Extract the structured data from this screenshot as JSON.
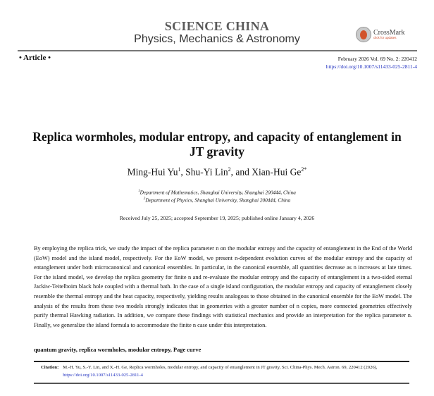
{
  "header": {
    "journal": "SCIENCE CHINA",
    "subjournal": "Physics, Mechanics & Astronomy",
    "crossmark": {
      "label": "CrossMark",
      "sublabel": "click for updates"
    },
    "article_type": "• Article •",
    "issue": "February 2026  Vol. 69  No. 2: 220412",
    "doi": "https://doi.org/10.1007/s11433-025-2811-4"
  },
  "paper": {
    "title": "Replica wormholes, modular entropy, and capacity of entanglement in JT gravity",
    "authors": [
      {
        "name": "Ming-Hui Yu",
        "sup": "1",
        "sep": ", "
      },
      {
        "name": "Shu-Yi Lin",
        "sup": "2",
        "sep": ", and "
      },
      {
        "name": "Xian-Hui Ge",
        "sup": "2*",
        "sep": ""
      }
    ],
    "affiliations": [
      {
        "sup": "1",
        "text": "Department of Mathematics, Shanghai University, Shanghai 200444, China"
      },
      {
        "sup": "2",
        "text": "Department of Physics, Shanghai University, Shanghai 200444, China"
      }
    ],
    "received": "Received July 25, 2025; accepted September 19, 2025; published online January 4, 2026",
    "abstract": "By employing the replica trick, we study the impact of the replica parameter n on the modular entropy and the capacity of entanglement in the End of the World (EoW) model and the island model, respectively. For the EoW model, we present n-dependent evolution curves of the modular entropy and the capacity of entanglement under both microcanonical and canonical ensembles. In particular, in the canonical ensemble, all quantities decrease as n increases at late times. For the island model, we develop the replica geometry for finite n and re-evaluate the modular entropy and the capacity of entanglement in a two-sided eternal Jackiw-Teitelboim black hole coupled with a thermal bath. In the case of a single island configuration, the modular entropy and capacity of entanglement closely resemble the thermal entropy and the heat capacity, respectively, yielding results analogous to those obtained in the canonical ensemble for the EoW model. The analysis of the results from these two models strongly indicates that in geometries with a greater number of n copies, more connected geometries effectively purify thermal Hawking radiation. In addition, we compare these findings with statistical mechanics and provide an interpretation for the replica parameter n. Finally, we generalize the island formula to accommodate the finite n case under this interpretation.",
    "keywords": "quantum gravity, replica wormholes, modular entropy, Page curve"
  },
  "citation": {
    "label": "Citation:",
    "text": "M.-H. Yu, S.-Y. Lin, and X.-H. Ge, Replica wormholes, modular entropy, and capacity of entanglement in JT gravity, Sci. China-Phys. Mech. Astron. 69, 220412 (2026), ",
    "doi": "https://doi.org/10.1007/s11433-025-2811-4"
  },
  "colors": {
    "link": "#2030c0",
    "journal": "#5a5a5a",
    "crossmark": "#d2532b"
  }
}
